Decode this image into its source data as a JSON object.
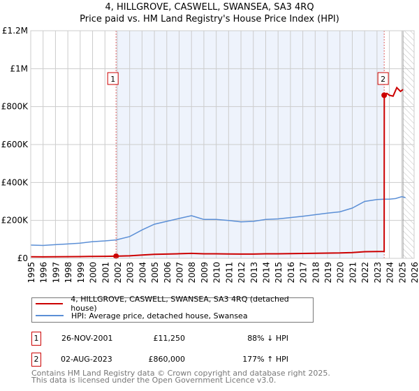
{
  "chart_data": {
    "type": "line",
    "title": "4, HILLGROVE, CASWELL, SWANSEA, SA3 4RQ",
    "subtitle": "Price paid vs. HM Land Registry's House Price Index (HPI)",
    "xlim": [
      1995,
      2026
    ],
    "ylim": [
      0,
      1200000
    ],
    "yticks": [
      {
        "v": 0,
        "label": "£0"
      },
      {
        "v": 200000,
        "label": "£200K"
      },
      {
        "v": 400000,
        "label": "£400K"
      },
      {
        "v": 600000,
        "label": "£600K"
      },
      {
        "v": 800000,
        "label": "£800K"
      },
      {
        "v": 1000000,
        "label": "£1M"
      },
      {
        "v": 1200000,
        "label": "£1.2M"
      }
    ],
    "xticks": [
      "1995",
      "1996",
      "1997",
      "1998",
      "1999",
      "2000",
      "2001",
      "2002",
      "2003",
      "2004",
      "2005",
      "2006",
      "2007",
      "2008",
      "2009",
      "2010",
      "2011",
      "2012",
      "2013",
      "2014",
      "2015",
      "2016",
      "2017",
      "2018",
      "2019",
      "2020",
      "2021",
      "2022",
      "2023",
      "2024",
      "2025",
      "2026"
    ],
    "series": [
      {
        "name": "4, HILLGROVE, CASWELL, SWANSEA, SA3 4RQ (detached house)",
        "color": "#cc0000",
        "x": [
          1995,
          1996,
          1997,
          1998,
          1999,
          2000,
          2001,
          2001.9,
          2003,
          2004,
          2005,
          2006,
          2007,
          2008,
          2009,
          2010,
          2011,
          2012,
          2013,
          2014,
          2015,
          2016,
          2017,
          2018,
          2019,
          2020,
          2021,
          2022,
          2023,
          2023.58,
          2023.59,
          2023.8,
          2024,
          2024.3,
          2024.6,
          2024.9,
          2025.1
        ],
        "y": [
          8100,
          7900,
          8400,
          8800,
          9300,
          10200,
          10700,
          11250,
          13300,
          17400,
          20900,
          22600,
          24400,
          26100,
          23800,
          23800,
          23200,
          22300,
          22600,
          23800,
          24100,
          24900,
          25700,
          26700,
          27600,
          28400,
          30700,
          34800,
          36000,
          36500,
          860000,
          870000,
          860000,
          855000,
          900000,
          880000,
          890000
        ]
      },
      {
        "name": "HPI: Average price, detached house, Swansea",
        "color": "#5b8fd6",
        "x": [
          1995,
          1996,
          1997,
          1998,
          1999,
          2000,
          2001,
          2001.9,
          2003,
          2004,
          2005,
          2006,
          2007,
          2008,
          2008.5,
          2009,
          2010,
          2011,
          2012,
          2013,
          2014,
          2015,
          2016,
          2017,
          2018,
          2019,
          2020,
          2021,
          2022,
          2023,
          2023.6,
          2024,
          2024.5,
          2025,
          2025.3
        ],
        "y": [
          70000,
          68000,
          72000,
          76000,
          80000,
          88000,
          92000,
          97000,
          115000,
          150000,
          180000,
          195000,
          210000,
          225000,
          215000,
          205000,
          205000,
          200000,
          192000,
          195000,
          205000,
          208000,
          215000,
          222000,
          230000,
          238000,
          245000,
          265000,
          300000,
          310000,
          312000,
          312000,
          315000,
          325000,
          320000
        ]
      }
    ],
    "annotations": [
      {
        "label": "1",
        "x": 2001.9,
        "y": 11250
      },
      {
        "label": "2",
        "x": 2023.58,
        "y": 860000
      }
    ],
    "shaded_region": [
      2001.9,
      2023.58
    ],
    "hatched_from": 2025.1
  },
  "legend": [
    "4, HILLGROVE, CASWELL, SWANSEA, SA3 4RQ (detached house)",
    "HPI: Average price, detached house, Swansea"
  ],
  "transactions": [
    {
      "num": "1",
      "date": "26-NOV-2001",
      "price": "£11,250",
      "hpi": "88% ↓ HPI"
    },
    {
      "num": "2",
      "date": "02-AUG-2023",
      "price": "£860,000",
      "hpi": "177% ↑ HPI"
    }
  ],
  "footer": [
    "Contains HM Land Registry data © Crown copyright and database right 2025.",
    "This data is licensed under the Open Government Licence v3.0."
  ]
}
